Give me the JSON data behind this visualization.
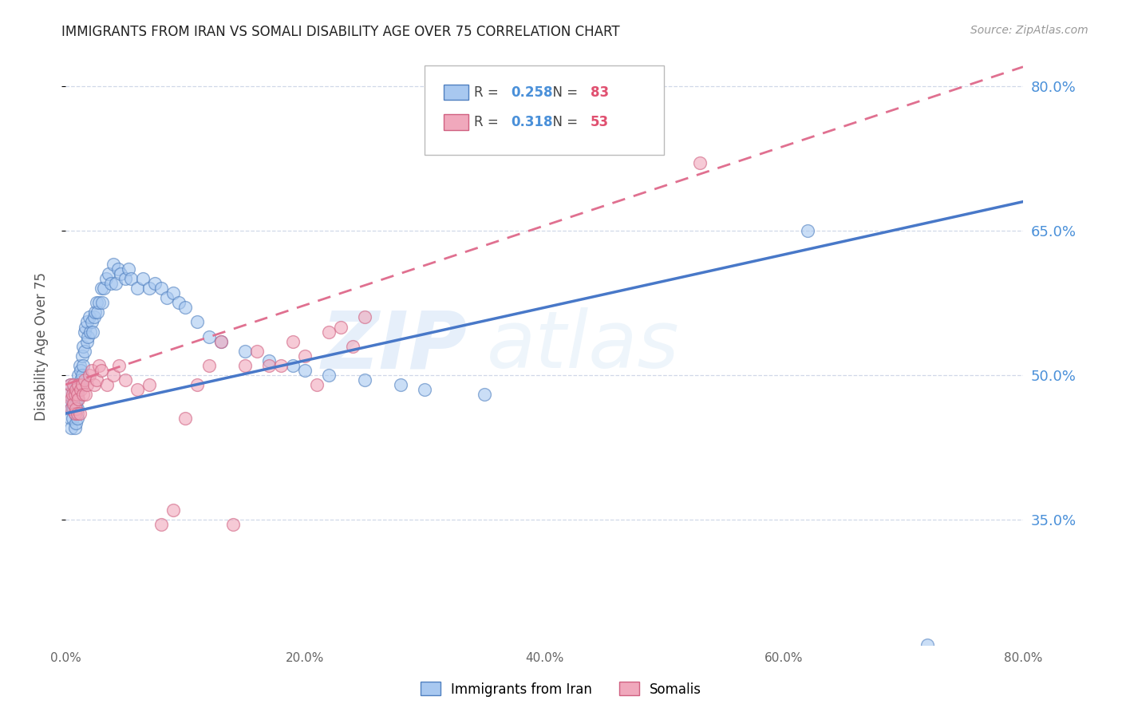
{
  "title": "IMMIGRANTS FROM IRAN VS SOMALI DISABILITY AGE OVER 75 CORRELATION CHART",
  "source": "Source: ZipAtlas.com",
  "ylabel": "Disability Age Over 75",
  "x_min": 0.0,
  "x_max": 0.8,
  "y_min": 0.22,
  "y_max": 0.84,
  "ytick_labels": [
    "35.0%",
    "50.0%",
    "65.0%",
    "80.0%"
  ],
  "ytick_values": [
    0.35,
    0.5,
    0.65,
    0.8
  ],
  "xtick_labels": [
    "0.0%",
    "20.0%",
    "40.0%",
    "60.0%",
    "80.0%"
  ],
  "xtick_values": [
    0.0,
    0.2,
    0.4,
    0.6,
    0.8
  ],
  "iran_R": 0.258,
  "iran_N": 83,
  "somali_R": 0.318,
  "somali_N": 53,
  "iran_color": "#a8c8f0",
  "somali_color": "#f0a8bc",
  "iran_edge_color": "#5080c0",
  "somali_edge_color": "#d06080",
  "iran_line_color": "#4878c8",
  "somali_line_color": "#e07090",
  "legend_label_iran": "Immigrants from Iran",
  "legend_label_somali": "Somalis",
  "iran_scatter_x": [
    0.002,
    0.003,
    0.004,
    0.004,
    0.005,
    0.005,
    0.006,
    0.006,
    0.006,
    0.007,
    0.007,
    0.007,
    0.008,
    0.008,
    0.008,
    0.009,
    0.009,
    0.009,
    0.01,
    0.01,
    0.01,
    0.01,
    0.011,
    0.011,
    0.012,
    0.012,
    0.013,
    0.013,
    0.014,
    0.014,
    0.015,
    0.015,
    0.016,
    0.016,
    0.017,
    0.018,
    0.018,
    0.019,
    0.02,
    0.021,
    0.022,
    0.023,
    0.024,
    0.025,
    0.026,
    0.027,
    0.028,
    0.03,
    0.031,
    0.032,
    0.034,
    0.036,
    0.038,
    0.04,
    0.042,
    0.044,
    0.046,
    0.05,
    0.053,
    0.055,
    0.06,
    0.065,
    0.07,
    0.075,
    0.08,
    0.085,
    0.09,
    0.095,
    0.1,
    0.11,
    0.12,
    0.13,
    0.15,
    0.17,
    0.19,
    0.2,
    0.22,
    0.25,
    0.28,
    0.3,
    0.35,
    0.62,
    0.72
  ],
  "iran_scatter_y": [
    0.47,
    0.48,
    0.455,
    0.49,
    0.465,
    0.445,
    0.475,
    0.455,
    0.465,
    0.485,
    0.475,
    0.465,
    0.445,
    0.46,
    0.48,
    0.465,
    0.45,
    0.47,
    0.49,
    0.455,
    0.475,
    0.465,
    0.5,
    0.485,
    0.51,
    0.49,
    0.505,
    0.495,
    0.52,
    0.5,
    0.53,
    0.51,
    0.545,
    0.525,
    0.55,
    0.535,
    0.555,
    0.54,
    0.56,
    0.545,
    0.555,
    0.545,
    0.56,
    0.565,
    0.575,
    0.565,
    0.575,
    0.59,
    0.575,
    0.59,
    0.6,
    0.605,
    0.595,
    0.615,
    0.595,
    0.61,
    0.605,
    0.6,
    0.61,
    0.6,
    0.59,
    0.6,
    0.59,
    0.595,
    0.59,
    0.58,
    0.585,
    0.575,
    0.57,
    0.555,
    0.54,
    0.535,
    0.525,
    0.515,
    0.51,
    0.505,
    0.5,
    0.495,
    0.49,
    0.485,
    0.48,
    0.65,
    0.22
  ],
  "somali_scatter_x": [
    0.003,
    0.004,
    0.005,
    0.005,
    0.006,
    0.007,
    0.007,
    0.008,
    0.008,
    0.009,
    0.009,
    0.01,
    0.01,
    0.011,
    0.011,
    0.012,
    0.013,
    0.014,
    0.015,
    0.016,
    0.017,
    0.018,
    0.02,
    0.022,
    0.024,
    0.026,
    0.028,
    0.03,
    0.035,
    0.04,
    0.045,
    0.05,
    0.06,
    0.07,
    0.08,
    0.09,
    0.1,
    0.11,
    0.12,
    0.13,
    0.14,
    0.15,
    0.16,
    0.17,
    0.18,
    0.19,
    0.2,
    0.21,
    0.22,
    0.23,
    0.24,
    0.25,
    0.53
  ],
  "somali_scatter_y": [
    0.48,
    0.49,
    0.465,
    0.475,
    0.48,
    0.47,
    0.49,
    0.48,
    0.46,
    0.485,
    0.465,
    0.48,
    0.46,
    0.49,
    0.475,
    0.46,
    0.485,
    0.49,
    0.48,
    0.495,
    0.48,
    0.49,
    0.5,
    0.505,
    0.49,
    0.495,
    0.51,
    0.505,
    0.49,
    0.5,
    0.51,
    0.495,
    0.485,
    0.49,
    0.345,
    0.36,
    0.455,
    0.49,
    0.51,
    0.535,
    0.345,
    0.51,
    0.525,
    0.51,
    0.51,
    0.535,
    0.52,
    0.49,
    0.545,
    0.55,
    0.53,
    0.56,
    0.72
  ],
  "iran_trend_x": [
    0.0,
    0.8
  ],
  "iran_trend_y": [
    0.46,
    0.68
  ],
  "somali_trend_x": [
    0.0,
    0.8
  ],
  "somali_trend_y": [
    0.49,
    0.82
  ],
  "watermark_zip": "ZIP",
  "watermark_atlas": "atlas",
  "background_color": "#ffffff",
  "grid_color": "#d0d8e8",
  "title_color": "#222222",
  "axis_label_color": "#555555",
  "right_tick_color": "#4a90d9",
  "legend_R_color": "#4a90d9",
  "legend_N_color": "#e05070"
}
